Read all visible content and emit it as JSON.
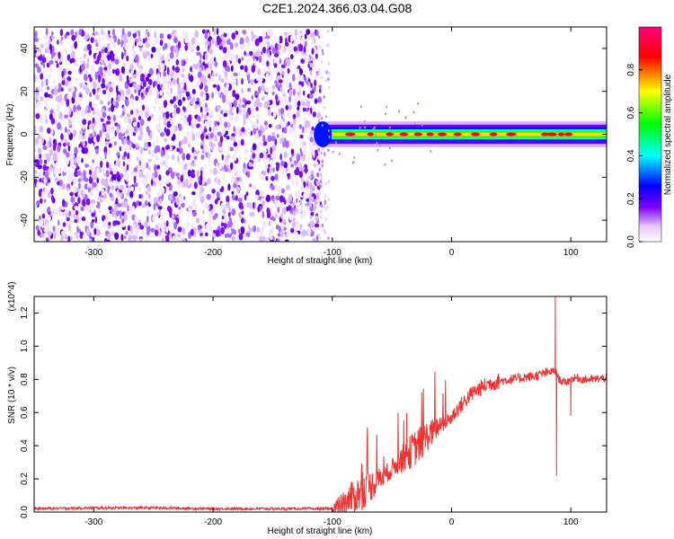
{
  "title": "C2E1.2024.366.03.04.G08",
  "chart_data": [
    {
      "type": "heatmap",
      "title": "C2E1.2024.366.03.04.G08",
      "xlabel": "Height of straight line (km)",
      "ylabel": "Frequency (Hz)",
      "xlim": [
        -350,
        130
      ],
      "ylim": [
        -50,
        50
      ],
      "x_ticks": [
        -300,
        -200,
        -100,
        0,
        100
      ],
      "y_ticks": [
        -40,
        -20,
        0,
        20,
        40
      ],
      "colorbar": {
        "label": "Normalized spectral amplitude",
        "range": [
          0,
          1
        ],
        "ticks": [
          "0.0",
          "0.2",
          "0.4",
          "0.6",
          "0.8"
        ],
        "colormap": [
          "#ffffff",
          "#8000ff",
          "#0000ff",
          "#00ffff",
          "#00ff00",
          "#ffff00",
          "#ff0000",
          "#ff0080"
        ]
      },
      "regions": [
        {
          "x_range": [
            -350,
            -110
          ],
          "frequency_range": [
            -50,
            48
          ],
          "amplitude": [
            0.0,
            0.2
          ],
          "pattern": "noise"
        },
        {
          "x_range": [
            -110,
            130
          ],
          "center_frequency": 0,
          "half_width_hz": 6,
          "peak_amplitude": 1.0,
          "pattern": "carrier"
        }
      ],
      "grid": false
    },
    {
      "type": "line",
      "xlabel": "Height of straight line (km)",
      "ylabel": "SNR (10 * v/v)",
      "y_multiplier": "(x10^4)",
      "xlim": [
        -350,
        130
      ],
      "ylim": [
        0,
        1.3
      ],
      "x_ticks": [
        -300,
        -200,
        -100,
        0,
        100
      ],
      "y_ticks": [
        "0.0",
        "0.2",
        "0.4",
        "0.6",
        "0.8",
        "1.0",
        "1.2"
      ],
      "series": [
        {
          "color": "#ee3333",
          "x": [
            -350,
            -300,
            -250,
            -200,
            -150,
            -100,
            -95,
            -90,
            -85,
            -80,
            -75,
            -70,
            -65,
            -60,
            -55,
            -50,
            -45,
            -40,
            -35,
            -30,
            -25,
            -20,
            -15,
            -10,
            -5,
            0,
            5,
            10,
            15,
            20,
            25,
            30,
            40,
            50,
            60,
            70,
            75,
            80,
            85,
            88,
            90,
            95,
            100,
            105,
            110,
            120,
            130
          ],
          "values": [
            0.02,
            0.025,
            0.025,
            0.02,
            0.02,
            0.02,
            0.03,
            0.05,
            0.08,
            0.1,
            0.12,
            0.15,
            0.17,
            0.2,
            0.23,
            0.26,
            0.3,
            0.33,
            0.36,
            0.39,
            0.42,
            0.46,
            0.49,
            0.52,
            0.54,
            0.57,
            0.62,
            0.66,
            0.7,
            0.73,
            0.75,
            0.77,
            0.79,
            0.8,
            0.81,
            0.82,
            0.83,
            0.84,
            0.85,
            0.84,
            0.8,
            0.78,
            0.8,
            0.81,
            0.8,
            0.8,
            0.81
          ]
        }
      ],
      "annotations": [
        {
          "x": 87,
          "y": 1.3
        },
        {
          "x": 88,
          "y": 0.22
        },
        {
          "x": 100,
          "y": 0.58
        }
      ],
      "grid": false
    }
  ]
}
